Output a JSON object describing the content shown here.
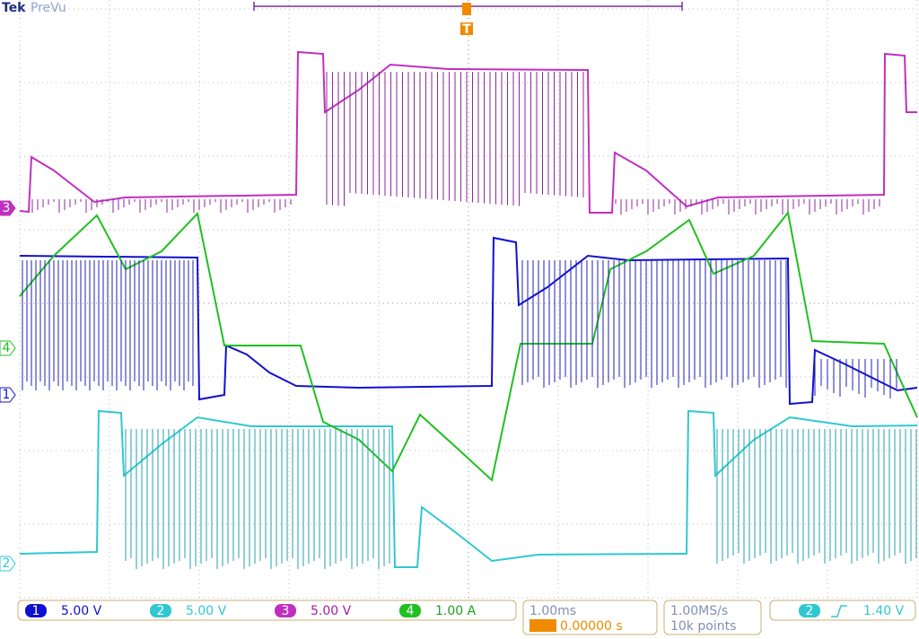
{
  "header": {
    "brand": "Tek",
    "mode": "PreVu",
    "trigger_marker": "T"
  },
  "channels": [
    {
      "number": "1",
      "scale": "5.00 V"
    },
    {
      "number": "2",
      "scale": "5.00 V"
    },
    {
      "number": "3",
      "scale": "5.00 V"
    },
    {
      "number": "4",
      "scale": "1.00 A"
    }
  ],
  "timebase": {
    "scale": "1.00ms",
    "delay": "0.00000 s"
  },
  "acquisition": {
    "rate": "1.00MS/s",
    "length": "10k points"
  },
  "trigger": {
    "source": "2",
    "level": "1.40 V"
  }
}
